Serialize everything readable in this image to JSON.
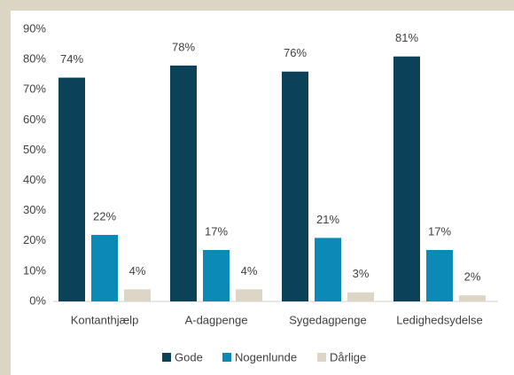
{
  "chart_data": {
    "type": "bar",
    "categories": [
      "Kontanthjælp",
      "A-dagpenge",
      "Sygedagpenge",
      "Ledighedsydelse"
    ],
    "series": [
      {
        "name": "Gode",
        "color": "#0b4259",
        "values": [
          74,
          78,
          76,
          81
        ],
        "value_labels": [
          "74%",
          "78%",
          "76%",
          "81%"
        ]
      },
      {
        "name": "Nogenlunde",
        "color": "#0b8ab8",
        "values": [
          22,
          17,
          21,
          17
        ],
        "value_labels": [
          "22%",
          "17%",
          "21%",
          "17%"
        ]
      },
      {
        "name": "Dårlige",
        "color": "#ddd5c5",
        "values": [
          4,
          4,
          3,
          2
        ],
        "value_labels": [
          "4%",
          "4%",
          "3%",
          "2%"
        ]
      }
    ],
    "ylim": [
      0,
      90
    ],
    "yticks": [
      {
        "value": 0,
        "label": "0%"
      },
      {
        "value": 10,
        "label": "10%"
      },
      {
        "value": 20,
        "label": "20%"
      },
      {
        "value": 30,
        "label": "30%"
      },
      {
        "value": 40,
        "label": "40%"
      },
      {
        "value": 50,
        "label": "50%"
      },
      {
        "value": 60,
        "label": "60%"
      },
      {
        "value": 70,
        "label": "70%"
      },
      {
        "value": 80,
        "label": "80%"
      },
      {
        "value": 90,
        "label": "90%"
      }
    ],
    "grid": false,
    "legend": "bottom"
  }
}
